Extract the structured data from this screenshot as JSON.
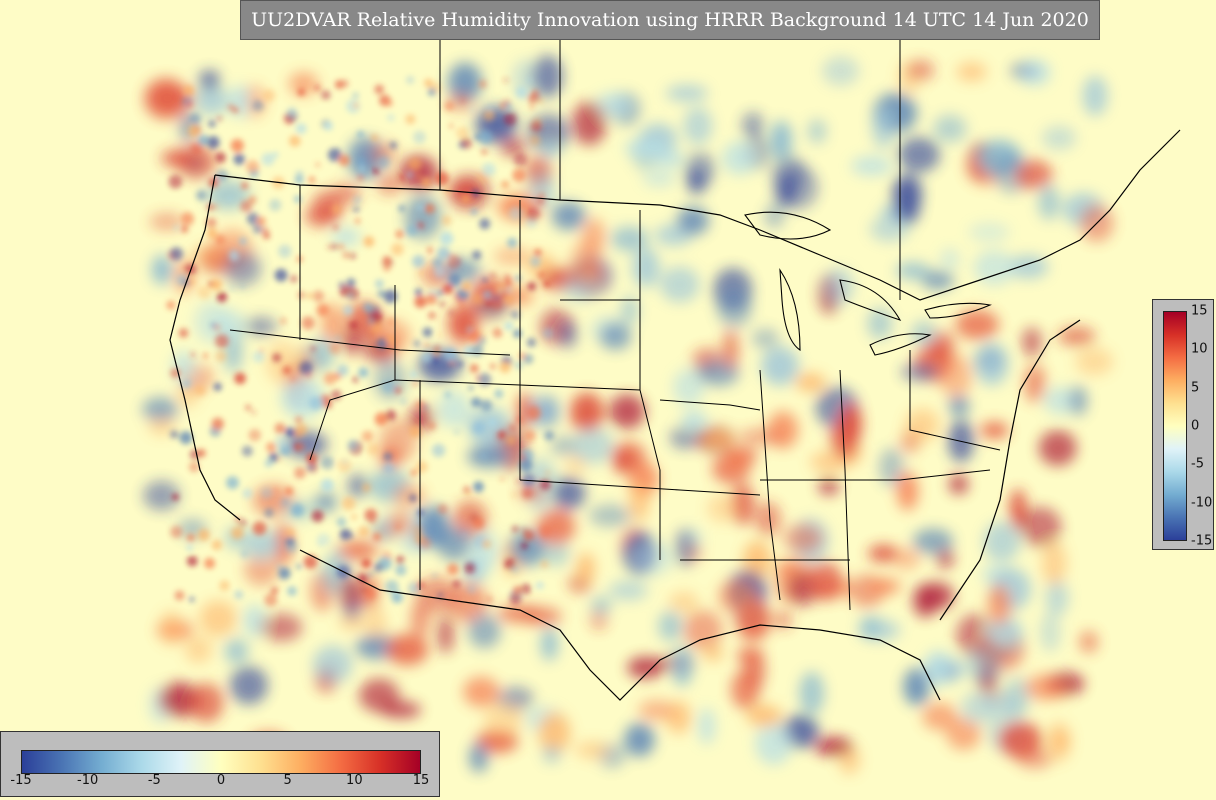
{
  "title": "UU2DVAR Relative Humidity Innovation using HRRR Background 14 UTC 14 Jun 2020",
  "colorbar": {
    "min": -15,
    "max": 15,
    "ticks_horizontal": [
      "-15",
      "-10",
      "-5",
      "0",
      "5",
      "10",
      "15"
    ],
    "ticks_vertical": [
      "15",
      "10",
      "5",
      "0",
      "-5",
      "-10",
      "-15"
    ],
    "colormap": "RdYlBu_r",
    "colors": [
      "#2b3f99",
      "#4a74b4",
      "#74add1",
      "#abd9e9",
      "#e0f3f8",
      "#ffffbf",
      "#fee090",
      "#fdae61",
      "#f46d43",
      "#d73027",
      "#a50026"
    ]
  },
  "colors": {
    "background": "#fefcc6",
    "panel": "#bdbdbd",
    "title_bg": "#888888"
  }
}
